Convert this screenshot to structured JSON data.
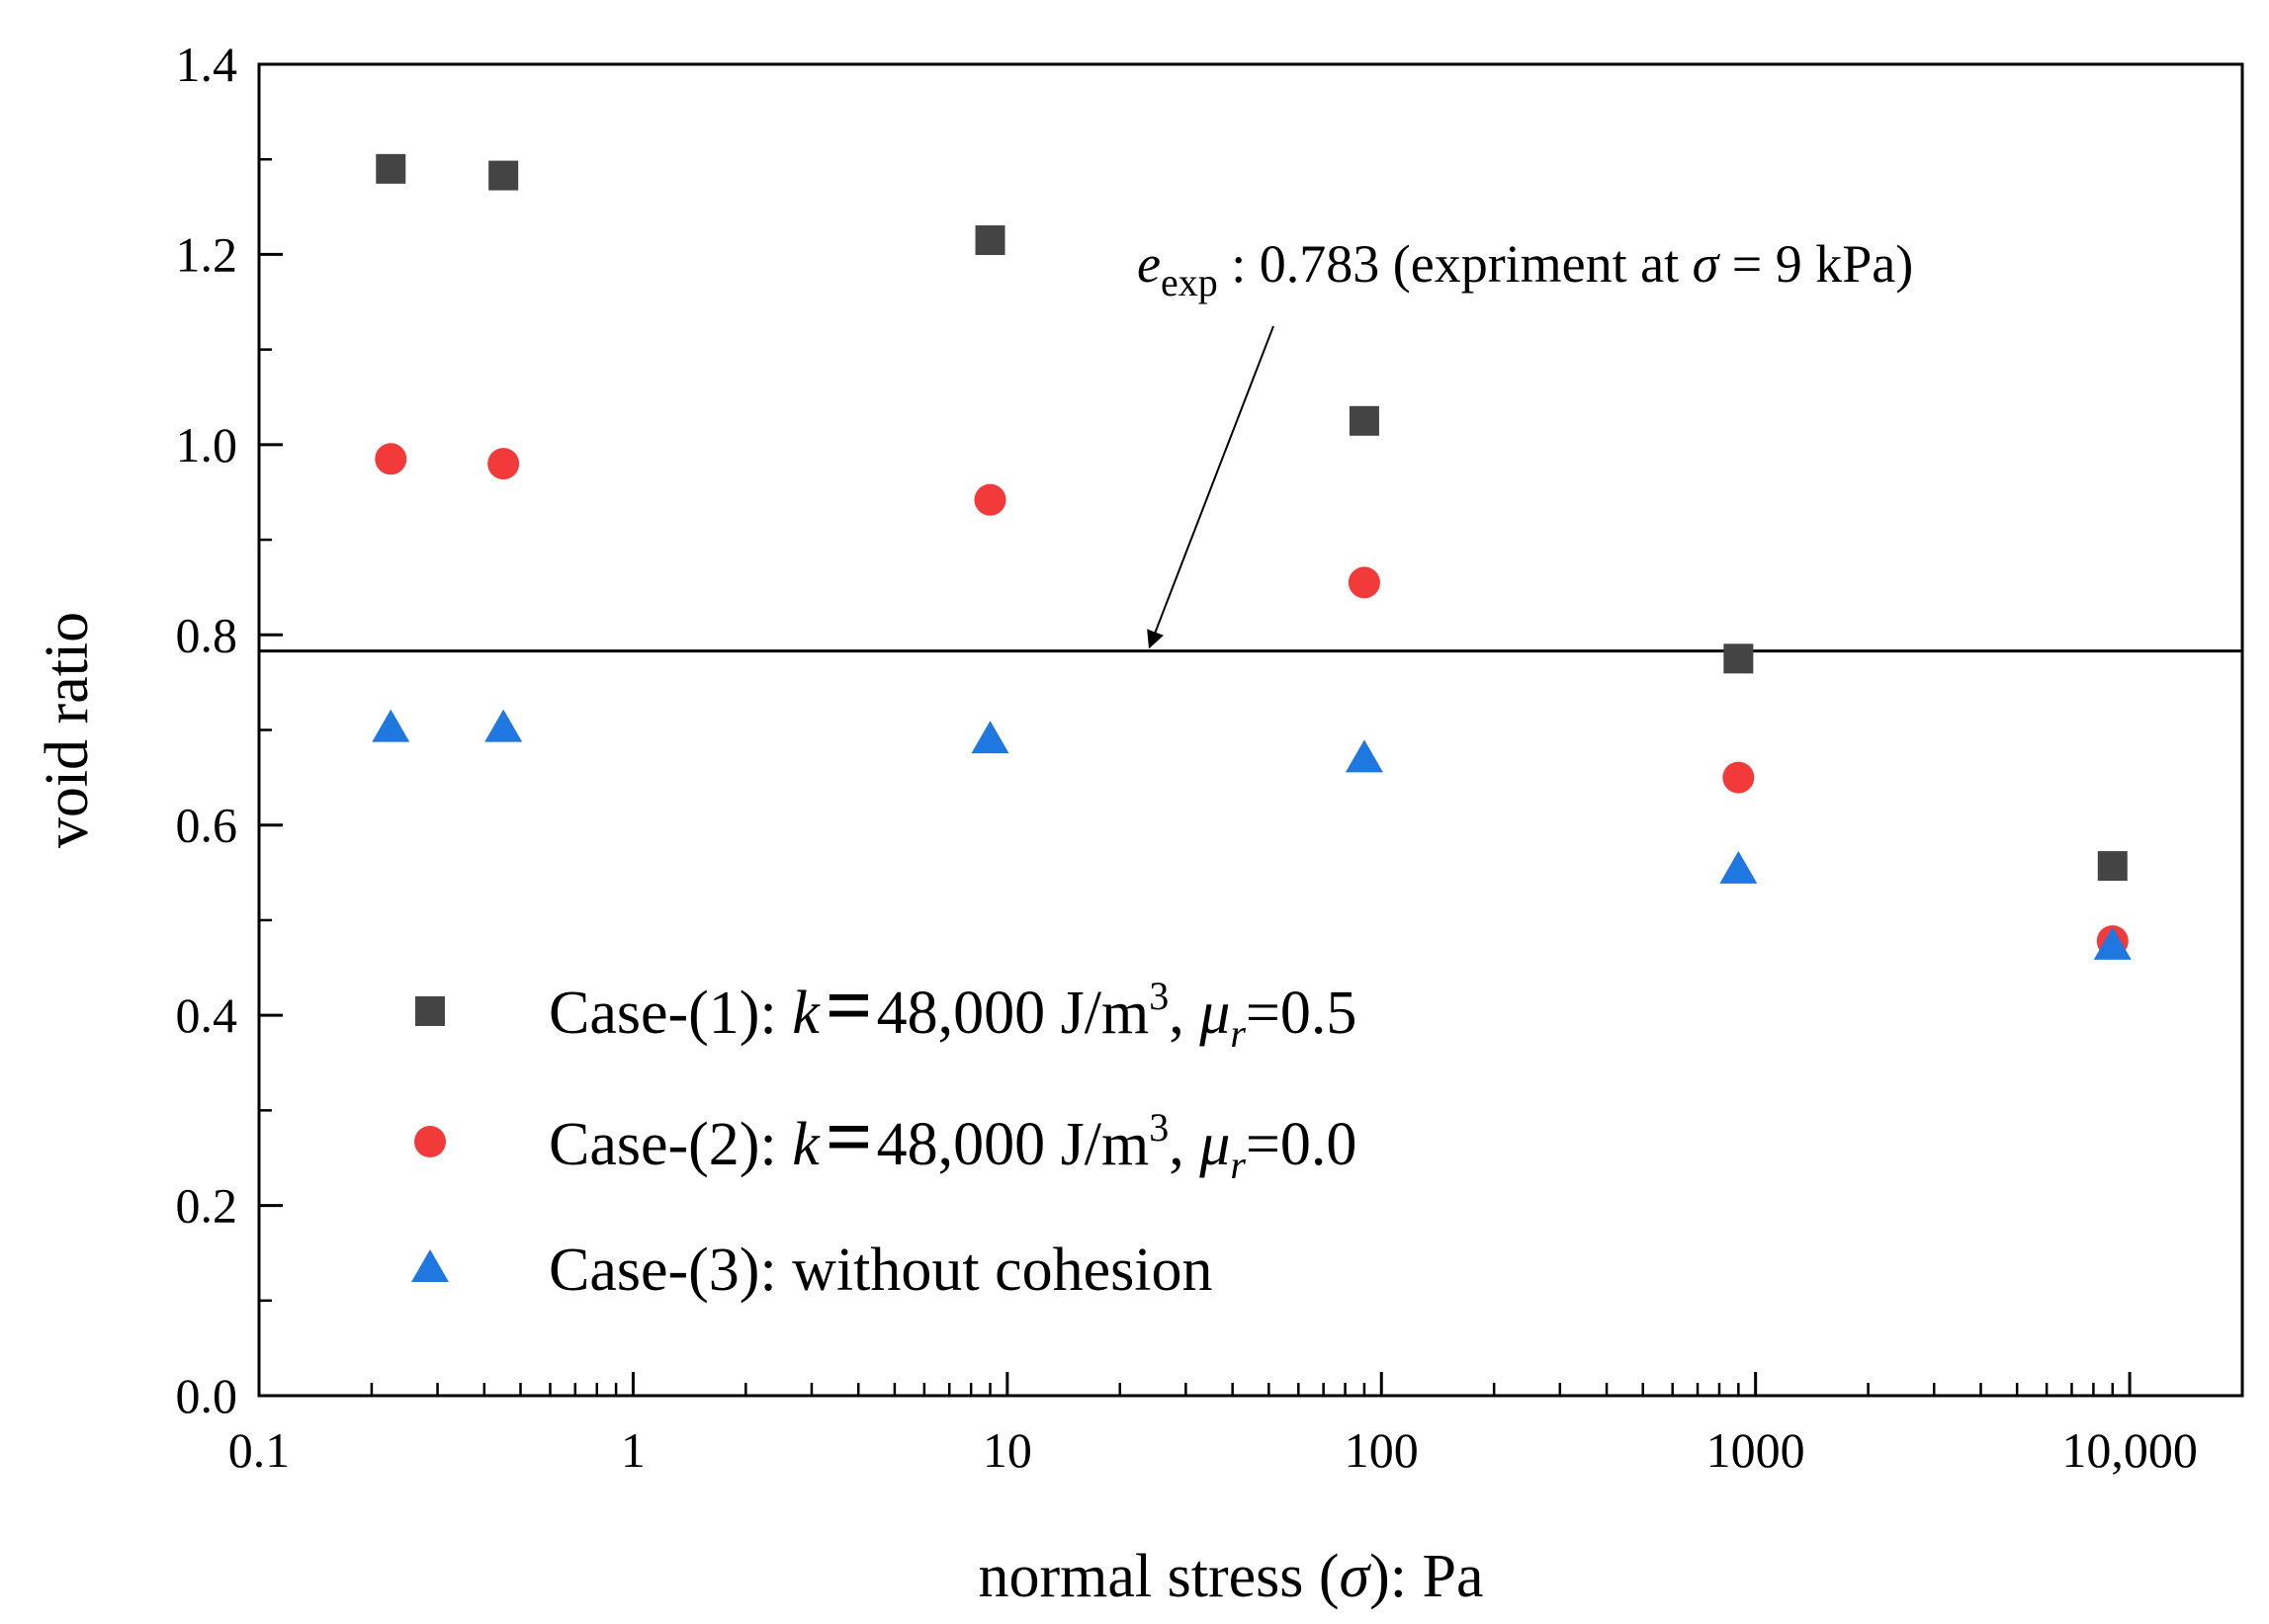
{
  "chart_data": {
    "type": "scatter",
    "xscale": "log",
    "xlim": [
      0.1,
      20000
    ],
    "ylim": [
      0.0,
      1.4
    ],
    "xlabel": {
      "pre": "normal stress (",
      "sym": "σ",
      "post": "): Pa"
    },
    "ylabel": "void ratio",
    "xticks": [
      {
        "value": 0.1,
        "label": "0.1"
      },
      {
        "value": 1,
        "label": "1"
      },
      {
        "value": 10,
        "label": "10"
      },
      {
        "value": 100,
        "label": "100"
      },
      {
        "value": 1000,
        "label": "1000"
      },
      {
        "value": 10000,
        "label": "10,000"
      }
    ],
    "yticks": [
      {
        "value": 0.0,
        "label": "0.0"
      },
      {
        "value": 0.2,
        "label": "0.2"
      },
      {
        "value": 0.4,
        "label": "0.4"
      },
      {
        "value": 0.6,
        "label": "0.6"
      },
      {
        "value": 0.8,
        "label": "0.8"
      },
      {
        "value": 1.0,
        "label": "1.0"
      },
      {
        "value": 1.2,
        "label": "1.2"
      },
      {
        "value": 1.4,
        "label": "1.4"
      }
    ],
    "x": [
      0.225,
      0.45,
      9,
      90,
      900,
      9000
    ],
    "series": [
      {
        "name": "Case-(1)",
        "marker": "square",
        "color": "#444444",
        "values": [
          1.29,
          1.283,
          1.215,
          1.025,
          0.775,
          0.557
        ],
        "legend": {
          "prefix": "Case-(1): ",
          "k": "k",
          "eq": "=",
          "val": "48,000 J/m",
          "exp": "3",
          "sep": ", ",
          "mu": "μ",
          "sub": "r",
          "tail": "=0.5"
        }
      },
      {
        "name": "Case-(2)",
        "marker": "circle",
        "color": "#f23a3a",
        "values": [
          0.985,
          0.98,
          0.942,
          0.855,
          0.65,
          0.478
        ],
        "legend": {
          "prefix": "Case-(2): ",
          "k": "k",
          "eq": "=",
          "val": "48,000 J/m",
          "exp": "3",
          "sep": ", ",
          "mu": "μ",
          "sub": "r",
          "tail": "=0.0"
        }
      },
      {
        "name": "Case-(3)",
        "marker": "triangle",
        "color": "#1f77e0",
        "values": [
          0.702,
          0.702,
          0.69,
          0.67,
          0.553,
          0.473
        ],
        "legend": {
          "plain": "Case-(3): without cohesion"
        }
      }
    ],
    "reference_line": {
      "y": 0.783,
      "color": "#000000",
      "annotation": {
        "e": "e",
        "sub": "exp",
        "mid": " : 0.783 (expriment at ",
        "sigma": "σ",
        "tail": " = 9 kPa)",
        "arrow_target_x": 24
      }
    },
    "legend_position": "bottom-left"
  }
}
